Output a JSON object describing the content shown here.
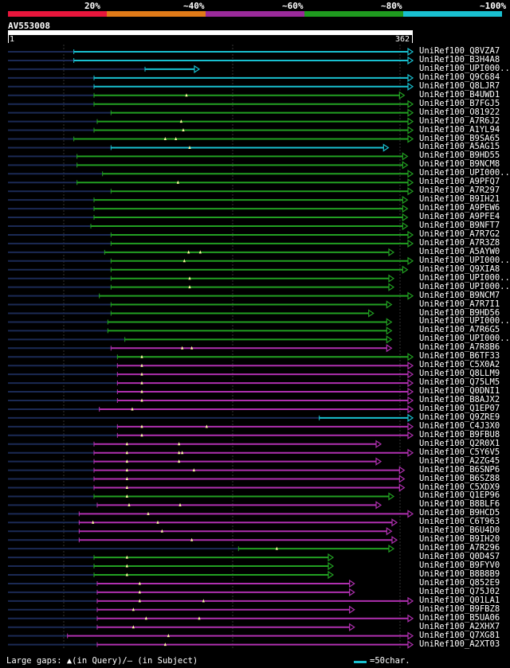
{
  "legend": {
    "segments": [
      {
        "label": "20%",
        "color": "#e8163c"
      },
      {
        "label": "~40%",
        "color": "#e07a18"
      },
      {
        "label": "~60%",
        "color": "#9a2a9a"
      },
      {
        "label": "~80%",
        "color": "#1f9a1f"
      },
      {
        "label": "~100%",
        "color": "#19c0d0"
      }
    ]
  },
  "query": {
    "name": "AV553008",
    "start": "1",
    "end": "362",
    "length": 362
  },
  "colors": {
    "cyan": "#19c0d0",
    "green": "#22a022",
    "magenta": "#b030b0",
    "dim": "#1b2a55",
    "gridline": "#333333"
  },
  "hits": [
    {
      "name": "UniRef100_Q8VZA7",
      "start": 62,
      "end": 381,
      "color": "cyan",
      "gaps": []
    },
    {
      "name": "UniRef100_B3H4A8",
      "start": 62,
      "end": 381,
      "color": "cyan",
      "gaps": []
    },
    {
      "name": "UniRef100_UPI000..",
      "start": 129,
      "end": 180,
      "color": "cyan",
      "gaps": []
    },
    {
      "name": "UniRef100_Q9C684",
      "start": 81,
      "end": 381,
      "color": "cyan",
      "gaps": []
    },
    {
      "name": "UniRef100_Q8LJR7",
      "start": 81,
      "end": 381,
      "color": "cyan",
      "gaps": []
    },
    {
      "name": "UniRef100_B4UWD1",
      "start": 81,
      "end": 373,
      "color": "green",
      "gaps": [
        168
      ]
    },
    {
      "name": "UniRef100_B7FGJ5",
      "start": 81,
      "end": 381,
      "color": "green",
      "gaps": []
    },
    {
      "name": "UniRef100_O81922",
      "start": 97,
      "end": 381,
      "color": "green",
      "gaps": []
    },
    {
      "name": "UniRef100_A7R6J2",
      "start": 84,
      "end": 381,
      "color": "green",
      "gaps": [
        163
      ]
    },
    {
      "name": "UniRef100_A1YL94",
      "start": 81,
      "end": 381,
      "color": "green",
      "gaps": [
        165
      ]
    },
    {
      "name": "UniRef100_B9SA65",
      "start": 62,
      "end": 381,
      "color": "green",
      "gaps": [
        148,
        158
      ]
    },
    {
      "name": "UniRef100_A5AG15",
      "start": 97,
      "end": 358,
      "color": "cyan",
      "gaps": [
        171
      ]
    },
    {
      "name": "UniRef100_B9HD55",
      "start": 65,
      "end": 376,
      "color": "green",
      "gaps": []
    },
    {
      "name": "UniRef100_B9NCM8",
      "start": 65,
      "end": 376,
      "color": "green",
      "gaps": []
    },
    {
      "name": "UniRef100_UPI000..",
      "start": 89,
      "end": 381,
      "color": "green",
      "gaps": []
    },
    {
      "name": "UniRef100_A9PFQ7",
      "start": 65,
      "end": 381,
      "color": "green",
      "gaps": [
        160
      ]
    },
    {
      "name": "UniRef100_A7R297",
      "start": 97,
      "end": 381,
      "color": "green",
      "gaps": []
    },
    {
      "name": "UniRef100_B9IH21",
      "start": 81,
      "end": 376,
      "color": "green",
      "gaps": []
    },
    {
      "name": "UniRef100_A9PEW6",
      "start": 81,
      "end": 376,
      "color": "green",
      "gaps": []
    },
    {
      "name": "UniRef100_A9PFE4",
      "start": 81,
      "end": 376,
      "color": "green",
      "gaps": []
    },
    {
      "name": "UniRef100_B9NFT7",
      "start": 78,
      "end": 376,
      "color": "green",
      "gaps": []
    },
    {
      "name": "UniRef100_A7R7G2",
      "start": 97,
      "end": 381,
      "color": "green",
      "gaps": []
    },
    {
      "name": "UniRef100_A7R3Z8",
      "start": 97,
      "end": 381,
      "color": "green",
      "gaps": []
    },
    {
      "name": "UniRef100_A5AYW0",
      "start": 91,
      "end": 363,
      "color": "green",
      "gaps": [
        170,
        181
      ]
    },
    {
      "name": "UniRef100_UPI000..",
      "start": 97,
      "end": 381,
      "color": "green",
      "gaps": [
        166
      ]
    },
    {
      "name": "UniRef100_Q9XIA8",
      "start": 97,
      "end": 376,
      "color": "green",
      "gaps": []
    },
    {
      "name": "UniRef100_UPI000..",
      "start": 97,
      "end": 363,
      "color": "green",
      "gaps": [
        171
      ]
    },
    {
      "name": "UniRef100_UPI000..",
      "start": 97,
      "end": 363,
      "color": "green",
      "gaps": [
        171
      ]
    },
    {
      "name": "UniRef100_B9NCM7",
      "start": 86,
      "end": 381,
      "color": "green",
      "gaps": []
    },
    {
      "name": "UniRef100_A7R7I1",
      "start": 97,
      "end": 361,
      "color": "green",
      "gaps": []
    },
    {
      "name": "UniRef100_B9HD56",
      "start": 97,
      "end": 344,
      "color": "green",
      "gaps": []
    },
    {
      "name": "UniRef100_UPI000..",
      "start": 94,
      "end": 361,
      "color": "green",
      "gaps": []
    },
    {
      "name": "UniRef100_A7R6G5",
      "start": 94,
      "end": 361,
      "color": "green",
      "gaps": []
    },
    {
      "name": "UniRef100_UPI000..",
      "start": 110,
      "end": 361,
      "color": "green",
      "gaps": []
    },
    {
      "name": "UniRef100_A7R8B6",
      "start": 97,
      "end": 361,
      "color": "magenta",
      "gaps": [
        164,
        173
      ]
    },
    {
      "name": "UniRef100_B6TF33",
      "start": 103,
      "end": 381,
      "color": "green",
      "gaps": [
        126
      ]
    },
    {
      "name": "UniRef100_C5X0A2",
      "start": 103,
      "end": 381,
      "color": "magenta",
      "gaps": [
        126
      ]
    },
    {
      "name": "UniRef100_Q8LLM9",
      "start": 103,
      "end": 381,
      "color": "magenta",
      "gaps": [
        126
      ]
    },
    {
      "name": "UniRef100_Q75LM5",
      "start": 103,
      "end": 381,
      "color": "magenta",
      "gaps": [
        126
      ]
    },
    {
      "name": "UniRef100_Q0DNI1",
      "start": 103,
      "end": 381,
      "color": "magenta",
      "gaps": [
        126
      ]
    },
    {
      "name": "UniRef100_B8AJX2",
      "start": 103,
      "end": 381,
      "color": "magenta",
      "gaps": [
        126
      ]
    },
    {
      "name": "UniRef100_Q1EP07",
      "start": 86,
      "end": 381,
      "color": "magenta",
      "gaps": [
        117
      ]
    },
    {
      "name": "UniRef100_Q9ZRE9",
      "start": 293,
      "end": 381,
      "color": "cyan",
      "gaps": []
    },
    {
      "name": "UniRef100_C4J3X0",
      "start": 103,
      "end": 381,
      "color": "magenta",
      "gaps": [
        126,
        187
      ]
    },
    {
      "name": "UniRef100_B9FBU8",
      "start": 103,
      "end": 381,
      "color": "magenta",
      "gaps": [
        126
      ]
    },
    {
      "name": "UniRef100_Q2R0X1",
      "start": 81,
      "end": 351,
      "color": "magenta",
      "gaps": [
        112,
        161
      ]
    },
    {
      "name": "UniRef100_C5Y6V5",
      "start": 81,
      "end": 381,
      "color": "magenta",
      "gaps": [
        112,
        161,
        164
      ]
    },
    {
      "name": "UniRef100_A2ZG45",
      "start": 81,
      "end": 351,
      "color": "magenta",
      "gaps": [
        112,
        161
      ]
    },
    {
      "name": "UniRef100_B6SNP6",
      "start": 81,
      "end": 373,
      "color": "magenta",
      "gaps": [
        112,
        175
      ]
    },
    {
      "name": "UniRef100_B6SZ88",
      "start": 81,
      "end": 373,
      "color": "magenta",
      "gaps": [
        112
      ]
    },
    {
      "name": "UniRef100_C5XDX9",
      "start": 81,
      "end": 373,
      "color": "magenta",
      "gaps": [
        112
      ]
    },
    {
      "name": "UniRef100_Q1EP96",
      "start": 81,
      "end": 363,
      "color": "green",
      "gaps": [
        112
      ]
    },
    {
      "name": "UniRef100_B8BLF6",
      "start": 84,
      "end": 351,
      "color": "magenta",
      "gaps": [
        114,
        162
      ]
    },
    {
      "name": "UniRef100_B9HCD5",
      "start": 67,
      "end": 381,
      "color": "magenta",
      "gaps": [
        132
      ]
    },
    {
      "name": "UniRef100_C6T963",
      "start": 67,
      "end": 366,
      "color": "magenta",
      "gaps": [
        80,
        141
      ]
    },
    {
      "name": "UniRef100_B6U4D0",
      "start": 67,
      "end": 361,
      "color": "magenta",
      "gaps": [
        145
      ]
    },
    {
      "name": "UniRef100_B9IH20",
      "start": 67,
      "end": 366,
      "color": "magenta",
      "gaps": [
        173
      ]
    },
    {
      "name": "UniRef100_A7R296",
      "start": 217,
      "end": 363,
      "color": "green",
      "gaps": [
        253
      ]
    },
    {
      "name": "UniRef100_Q0D4S7",
      "start": 81,
      "end": 306,
      "color": "green",
      "gaps": [
        112
      ]
    },
    {
      "name": "UniRef100_B9FYV0",
      "start": 81,
      "end": 306,
      "color": "green",
      "gaps": [
        112
      ]
    },
    {
      "name": "UniRef100_B8B8B9",
      "start": 81,
      "end": 306,
      "color": "green",
      "gaps": [
        112
      ]
    },
    {
      "name": "UniRef100_Q852E9",
      "start": 84,
      "end": 326,
      "color": "magenta",
      "gaps": [
        124
      ]
    },
    {
      "name": "UniRef100_Q75J02",
      "start": 84,
      "end": 326,
      "color": "magenta",
      "gaps": [
        124
      ]
    },
    {
      "name": "UniRef100_Q01LA1",
      "start": 84,
      "end": 381,
      "color": "magenta",
      "gaps": [
        124,
        184
      ]
    },
    {
      "name": "UniRef100_B9FBZ8",
      "start": 84,
      "end": 326,
      "color": "magenta",
      "gaps": [
        118
      ]
    },
    {
      "name": "UniRef100_B5UA06",
      "start": 84,
      "end": 381,
      "color": "magenta",
      "gaps": [
        130,
        180
      ]
    },
    {
      "name": "UniRef100_A2XHX7",
      "start": 84,
      "end": 326,
      "color": "magenta",
      "gaps": [
        118
      ]
    },
    {
      "name": "UniRef100_Q7XG81",
      "start": 56,
      "end": 381,
      "color": "magenta",
      "gaps": [
        151
      ]
    },
    {
      "name": "UniRef100_A2XT03",
      "start": 84,
      "end": 381,
      "color": "magenta",
      "gaps": [
        148
      ]
    }
  ],
  "footer": {
    "gaps_text": "Large gaps: ▲(in Query)/– (in Subject)",
    "scale_text": "=50char."
  }
}
